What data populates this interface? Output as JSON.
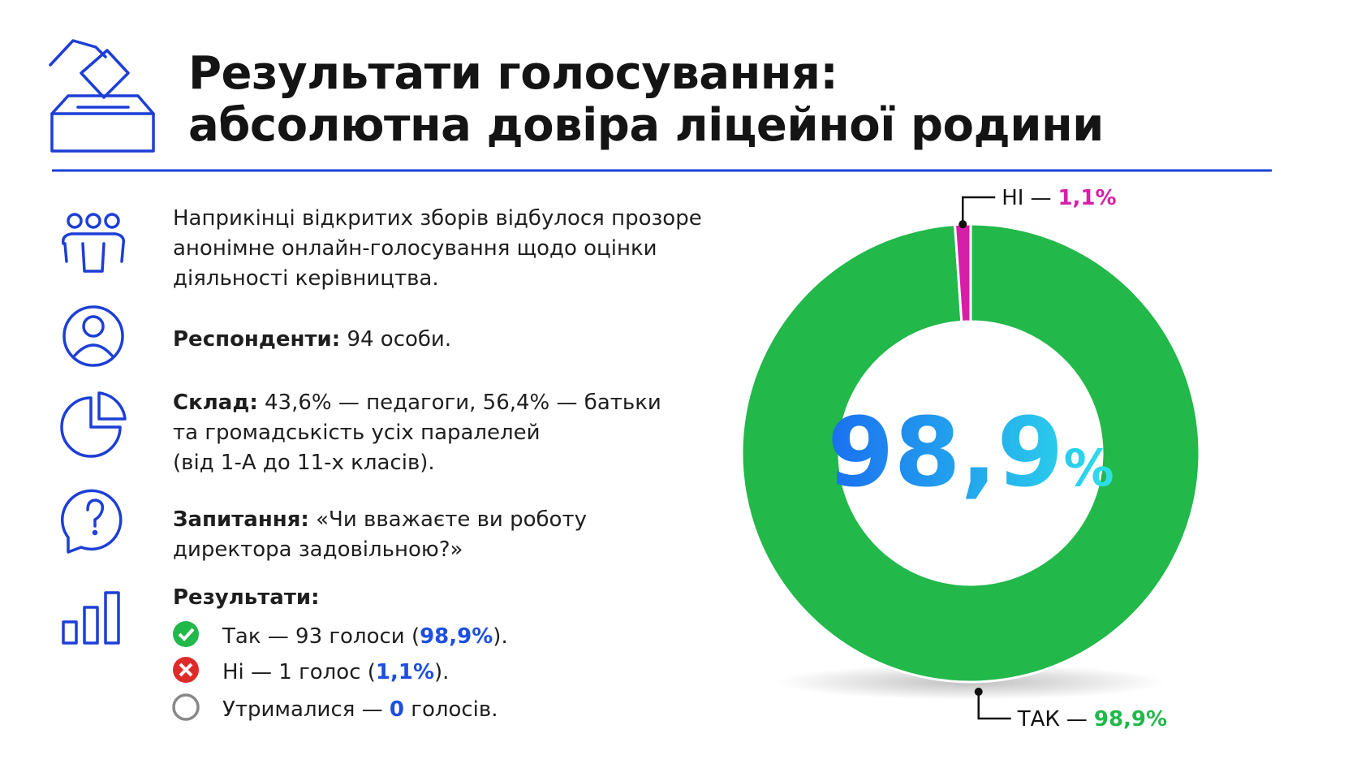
{
  "header": {
    "title_line1": "Результати голосування:",
    "title_line2": "абсолютна довіра ліцейної родини"
  },
  "intro": [
    "Наприкінці відкритих зборів відбулося прозоре",
    "анонімне онлайн-голосування щодо оцінки",
    "діяльності керівництва."
  ],
  "respondents": {
    "label": "Респонденти:",
    "text": "94 особи."
  },
  "composition": {
    "label": "Склад:",
    "lines": [
      "43,6% — педагоги, 56,4% — батьки",
      "та громадськість усіх паралелей",
      "(від 1-А до 11-х класів)."
    ]
  },
  "question": {
    "label": "Запитання:",
    "lines": [
      "«Чи вважаєте ви роботу",
      "директора задовільною?»"
    ]
  },
  "results": {
    "title": "Результати:",
    "items": [
      {
        "before": "Так — 93 голоси (",
        "highlight": "98,9%",
        "after": ")."
      },
      {
        "before": "Ні — 1 голос (",
        "highlight": "1,1%",
        "after": ")."
      },
      {
        "before": "Утрималися — ",
        "highlight": "0",
        "after": " голосів."
      }
    ]
  },
  "chart_data": {
    "type": "donut",
    "categories": [
      "ТАК",
      "НІ"
    ],
    "separator": "—",
    "values": [
      98.9,
      1.1
    ],
    "value_labels": [
      "98,9%",
      "1,1%"
    ],
    "colors": [
      "#22b84a",
      "#d61fa8"
    ],
    "center_value": "98,9",
    "center_unit": "%"
  }
}
